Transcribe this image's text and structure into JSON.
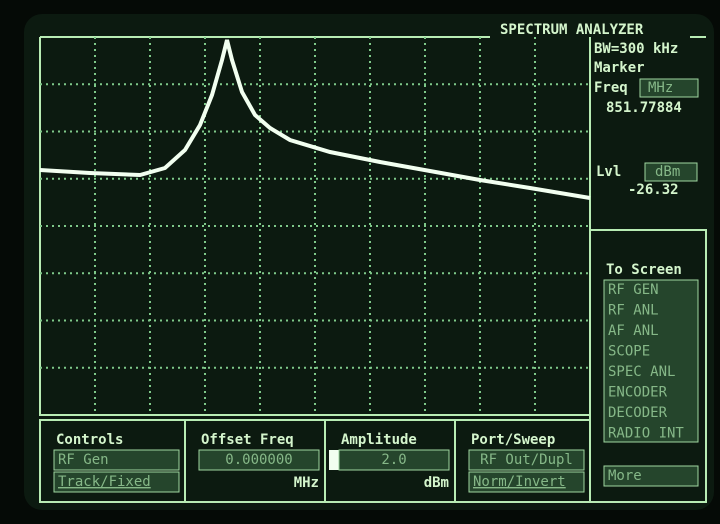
{
  "header": {
    "title": "SPECTRUM ANALYZER",
    "bandwidth": "BW=300 kHz"
  },
  "marker": {
    "label": "Marker",
    "freq_label": "Freq",
    "freq_unit": "MHz",
    "freq_value": "851.77884",
    "level_label": "Lvl",
    "level_unit": "dBm",
    "level_value": "-26.32"
  },
  "to_screen": {
    "title": "To Screen",
    "items": [
      "RF GEN",
      "RF ANL",
      "AF ANL",
      "SCOPE",
      "SPEC ANL",
      "ENCODER",
      "DECODER",
      "RADIO INT"
    ],
    "more": "More"
  },
  "controls": [
    {
      "title": "Controls",
      "field": "RF Gen",
      "option": "Track/Fixed"
    },
    {
      "title": "Offset Freq",
      "field": "0.000000",
      "unit": "MHz"
    },
    {
      "title": "Amplitude",
      "field": "2.0",
      "unit": "dBm"
    },
    {
      "title": "Port/Sweep",
      "field": "RF Out/Dupl",
      "option": "Norm/Invert"
    }
  ]
}
